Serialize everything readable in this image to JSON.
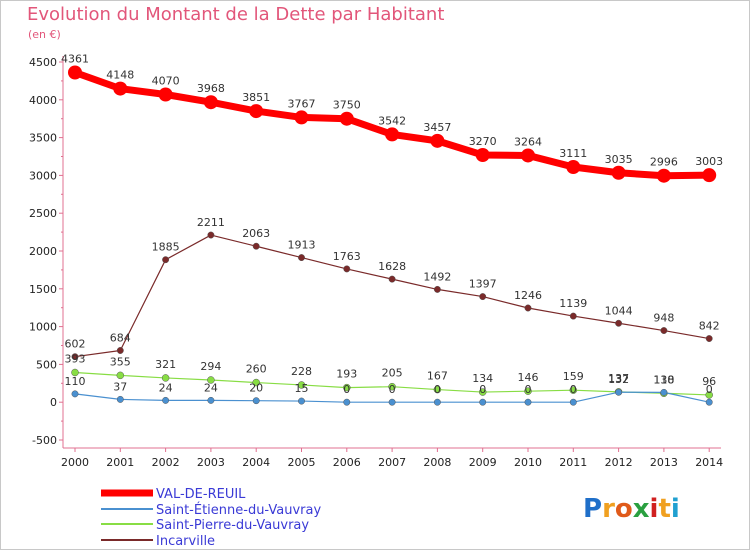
{
  "chart_data": {
    "type": "line",
    "title": "Evolution du Montant de la Dette par Habitant",
    "unit": "(en €)",
    "x": [
      "2000",
      "2001",
      "2002",
      "2003",
      "2004",
      "2005",
      "2006",
      "2007",
      "2008",
      "2009",
      "2010",
      "2011",
      "2012",
      "2013",
      "2014"
    ],
    "ylim": [
      -500,
      4500
    ],
    "yticks": [
      -500,
      0,
      500,
      1000,
      1500,
      2000,
      2500,
      3000,
      3500,
      4000,
      4500
    ],
    "grid": false,
    "legend_position": "bottom-left",
    "series": [
      {
        "name": "VAL-DE-REUIL",
        "color": "#ff0000",
        "values": [
          4361,
          4148,
          4070,
          3968,
          3851,
          3767,
          3750,
          3542,
          3457,
          3270,
          3264,
          3111,
          3035,
          2996,
          3003
        ],
        "labels": [
          "4361",
          "4148",
          "4070",
          "3968",
          "3851",
          "3767",
          "3750",
          "3542",
          "3457",
          "3270",
          "3264",
          "3111",
          "3035",
          "2996",
          "3003"
        ]
      },
      {
        "name": "Saint-Étienne-du-Vauvray",
        "color": "#4a90d0",
        "values": [
          110,
          37,
          24,
          24,
          20,
          15,
          0,
          0,
          0,
          0,
          0,
          0,
          132,
          130,
          0
        ],
        "labels": [
          "110",
          "37",
          "24",
          "24",
          "20",
          "15",
          "0",
          "0",
          "0",
          "0",
          "0",
          "0",
          "132",
          "130",
          "0"
        ]
      },
      {
        "name": "Saint-Pierre-du-Vauvray",
        "color": "#88dd44",
        "values": [
          393,
          355,
          321,
          294,
          260,
          228,
          193,
          205,
          167,
          134,
          146,
          159,
          137,
          118,
          96
        ],
        "labels": [
          "393",
          "355",
          "321",
          "294",
          "260",
          "228",
          "193",
          "205",
          "167",
          "134",
          "146",
          "159",
          "137",
          "118",
          "96"
        ]
      },
      {
        "name": "Incarville",
        "color": "#7a2a2a",
        "values": [
          602,
          684,
          1885,
          2211,
          2063,
          1913,
          1763,
          1628,
          1492,
          1397,
          1246,
          1139,
          1044,
          948,
          842
        ],
        "labels": [
          "602",
          "684",
          "1885",
          "2211",
          "2063",
          "1913",
          "1763",
          "1628",
          "1492",
          "1397",
          "1246",
          "1139",
          "1044",
          "948",
          "842"
        ]
      }
    ]
  },
  "logo": {
    "text": "Proxiti",
    "letters": [
      "P",
      "r",
      "o",
      "x",
      "i",
      "t",
      "i"
    ]
  }
}
